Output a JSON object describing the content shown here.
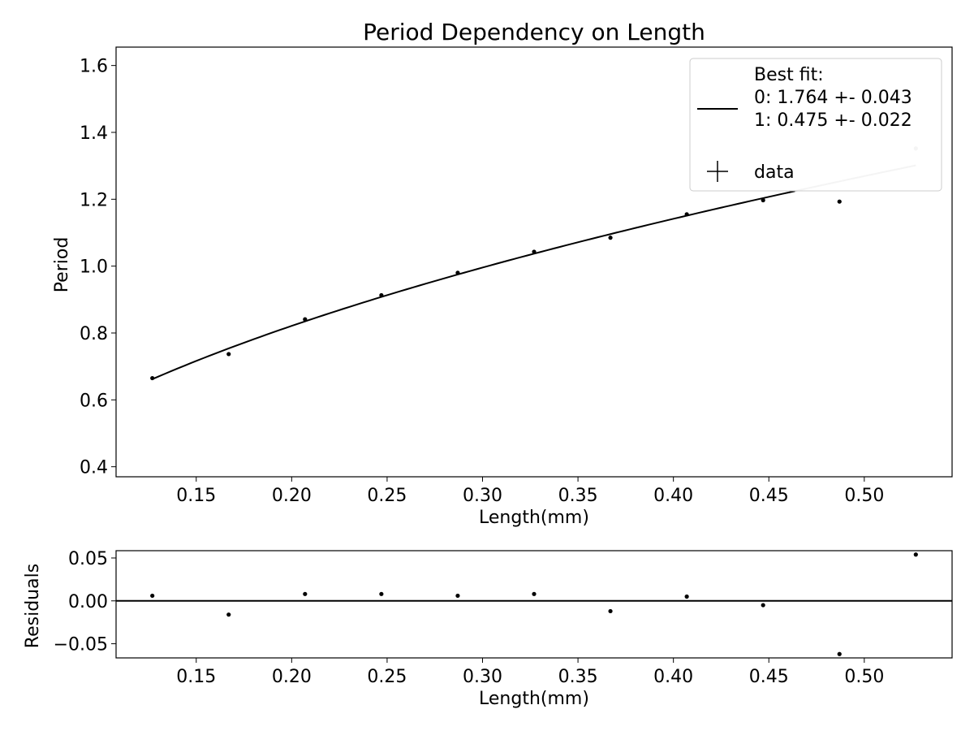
{
  "chart_data": [
    {
      "type": "line",
      "title": "Period Dependency on Length",
      "xlabel": "Length(mm)",
      "ylabel": "Period",
      "xlim": [
        0.108,
        0.546
      ],
      "ylim": [
        0.37,
        1.655
      ],
      "xticks": [
        0.15,
        0.2,
        0.25,
        0.3,
        0.35,
        0.4,
        0.45,
        0.5
      ],
      "xtick_labels": [
        "0.15",
        "0.20",
        "0.25",
        "0.30",
        "0.35",
        "0.40",
        "0.45",
        "0.50"
      ],
      "yticks": [
        0.4,
        0.6,
        0.8,
        1.0,
        1.2,
        1.4,
        1.6
      ],
      "ytick_labels": [
        "0.4",
        "0.6",
        "0.8",
        "1.0",
        "1.2",
        "1.4",
        "1.6"
      ],
      "grid": false,
      "legend": {
        "placement": "top-right",
        "entries": [
          {
            "label_lines": [
              "Best fit:",
              "0: 1.764 +- 0.043",
              "1: 0.475 +- 0.022"
            ],
            "style": "line"
          },
          {
            "label_lines": [
              "data"
            ],
            "style": "errorbar-marker"
          }
        ]
      },
      "series": [
        {
          "kind": "fit-curve",
          "equation": "y = a * x^b",
          "params": [
            1.764,
            0.475
          ],
          "x_range": [
            0.127,
            0.527
          ],
          "color": "#000000"
        },
        {
          "kind": "data-points",
          "x": [
            0.127,
            0.167,
            0.207,
            0.247,
            0.287,
            0.327,
            0.367,
            0.407,
            0.447,
            0.487,
            0.527
          ],
          "y": [
            0.665,
            0.737,
            0.841,
            0.913,
            0.98,
            1.043,
            1.085,
            1.155,
            1.197,
            1.193,
            1.352
          ],
          "color": "#000000"
        }
      ]
    },
    {
      "type": "scatter",
      "title": "",
      "xlabel": "Length(mm)",
      "ylabel": "Residuals",
      "xlim": [
        0.108,
        0.546
      ],
      "ylim": [
        -0.0665,
        0.0585
      ],
      "xticks": [
        0.15,
        0.2,
        0.25,
        0.3,
        0.35,
        0.4,
        0.45,
        0.5
      ],
      "xtick_labels": [
        "0.15",
        "0.20",
        "0.25",
        "0.30",
        "0.35",
        "0.40",
        "0.45",
        "0.50"
      ],
      "yticks": [
        0.05,
        0.0,
        -0.05
      ],
      "ytick_labels": [
        "0.05",
        "0.00",
        "−0.05"
      ],
      "grid": false,
      "zero_line": true,
      "series": [
        {
          "kind": "residuals",
          "x": [
            0.127,
            0.167,
            0.207,
            0.247,
            0.287,
            0.327,
            0.367,
            0.407,
            0.447,
            0.487,
            0.527
          ],
          "y": [
            0.006,
            -0.016,
            0.008,
            0.008,
            0.006,
            0.008,
            -0.012,
            0.005,
            -0.005,
            -0.062,
            0.054
          ],
          "color": "#000000"
        }
      ]
    }
  ]
}
